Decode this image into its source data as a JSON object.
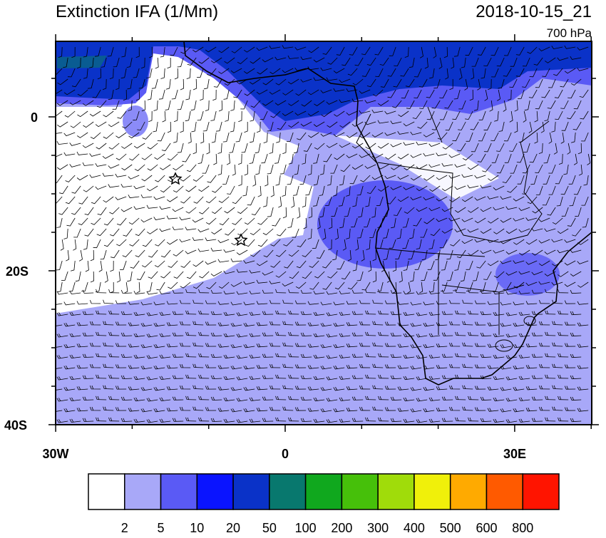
{
  "header": {
    "title": "Extinction IFA (1/Mm)",
    "time": "2018-10-15_21",
    "level": "700 hPa"
  },
  "map": {
    "lat_labels": [
      "0",
      "20S",
      "40S"
    ],
    "lon_labels": [
      "30W",
      "0",
      "30E"
    ]
  },
  "colorbar": {
    "levels": [
      2,
      5,
      10,
      20,
      50,
      100,
      200,
      300,
      400,
      500,
      600,
      800
    ],
    "colors": [
      "#ffffff",
      "#a8a8f8",
      "#5a5af5",
      "#0a14ff",
      "#0a32c8",
      "#08786e",
      "#10a81e",
      "#46c00a",
      "#a0dc0a",
      "#f0f00a",
      "#ffaa00",
      "#ff5a00",
      "#ff1400"
    ]
  }
}
